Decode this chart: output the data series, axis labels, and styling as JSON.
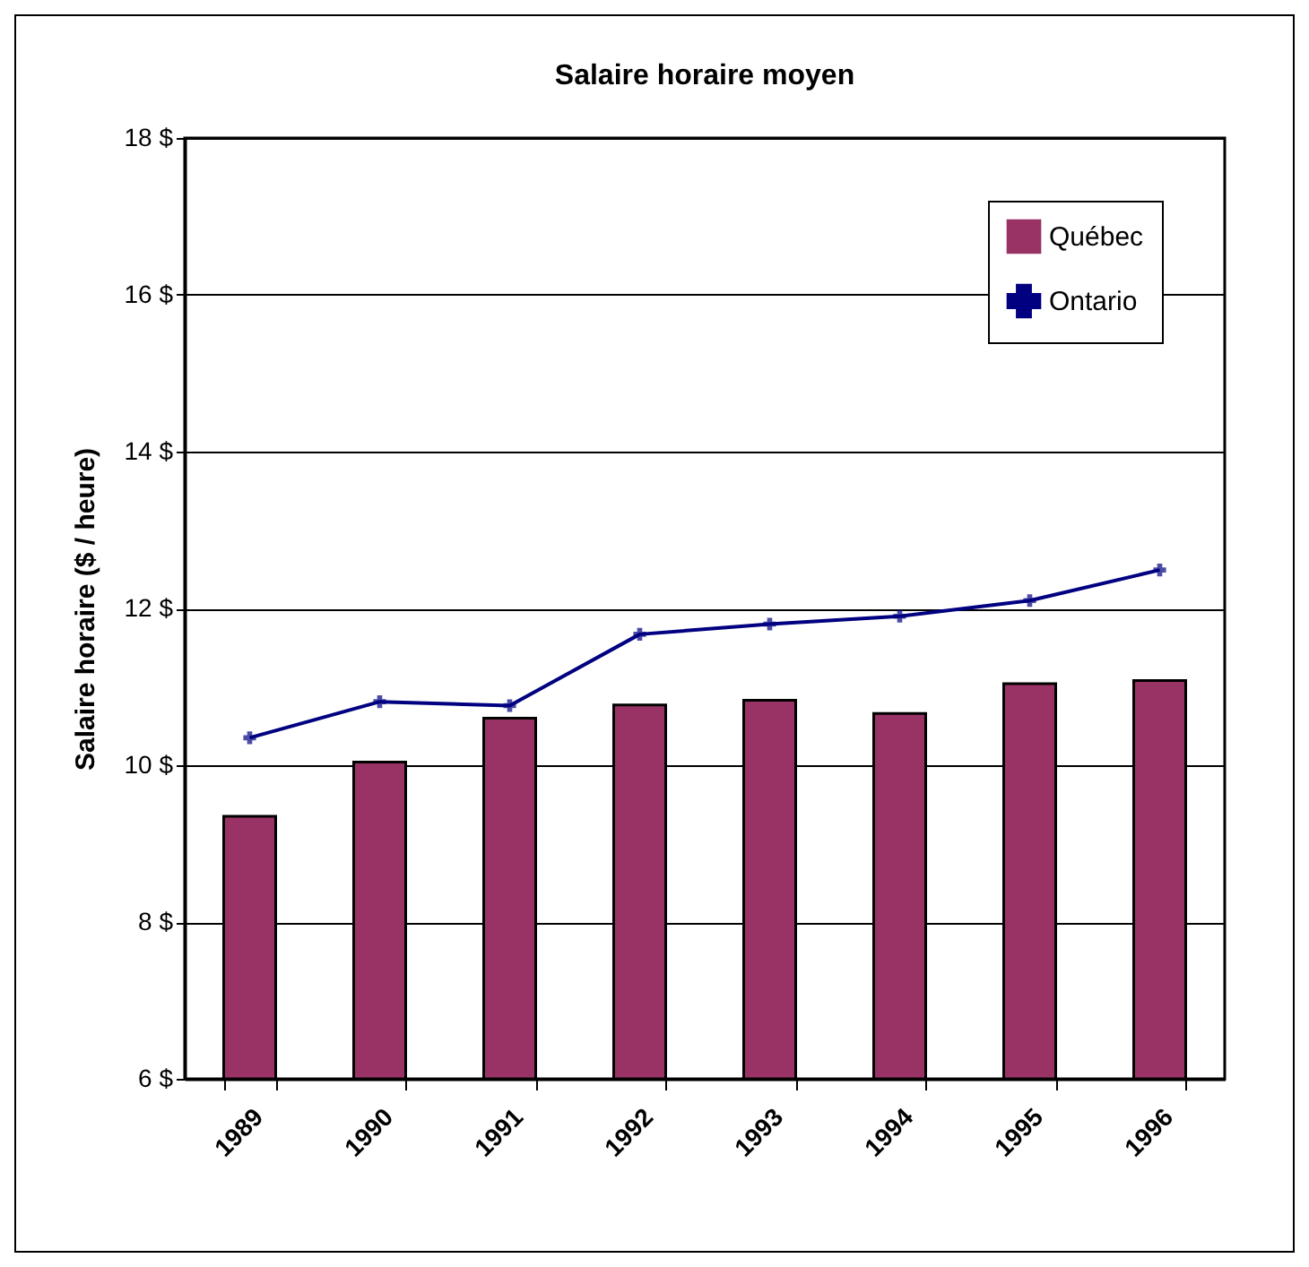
{
  "chart_data": {
    "type": "bar",
    "title": "Salaire horaire moyen",
    "ylabel": "Salaire horaire ($ / heure)",
    "categories": [
      "1989",
      "1990",
      "1991",
      "1992",
      "1993",
      "1994",
      "1995",
      "1996"
    ],
    "series": [
      {
        "name": "Québec",
        "color": "#993366",
        "values": [
          9.35,
          10.04,
          10.6,
          10.77,
          10.83,
          10.66,
          11.04,
          11.08
        ]
      },
      {
        "name": "Ontario",
        "type": "line",
        "color": "#000080",
        "marker": "cross",
        "values": [
          10.35,
          10.81,
          10.76,
          11.67,
          11.8,
          11.9,
          12.1,
          12.49
        ]
      }
    ],
    "ylim": [
      6,
      18
    ],
    "yticks": [
      {
        "value": 6,
        "label": "6 $"
      },
      {
        "value": 8,
        "label": "8 $"
      },
      {
        "value": 10,
        "label": "10 $"
      },
      {
        "value": 12,
        "label": "12 $"
      },
      {
        "value": 14,
        "label": "14 $"
      },
      {
        "value": 16,
        "label": "16 $"
      },
      {
        "value": 18,
        "label": "18 $"
      }
    ],
    "grid": "y",
    "legend": "top right"
  }
}
